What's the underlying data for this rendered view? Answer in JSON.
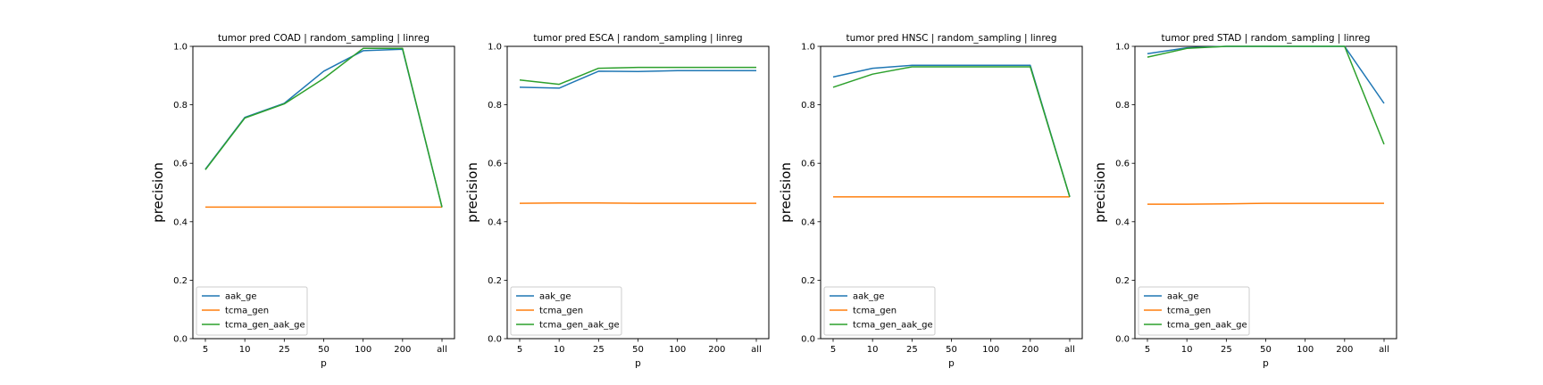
{
  "chart_data": [
    {
      "type": "line",
      "title": "tumor pred COAD | random_sampling | linreg",
      "xlabel": "p",
      "ylabel": "precision",
      "categories": [
        "5",
        "10",
        "25",
        "50",
        "100",
        "200",
        "all"
      ],
      "ylim": [
        0.0,
        1.0
      ],
      "yticks": [
        "0.0",
        "0.2",
        "0.4",
        "0.6",
        "0.8",
        "1.0"
      ],
      "legend_position": "lower-left",
      "grid": false,
      "series": [
        {
          "name": "aak_ge",
          "color": "#1f77b4",
          "values": [
            0.58,
            0.757,
            0.805,
            0.915,
            0.985,
            0.99,
            0.45
          ]
        },
        {
          "name": "tcma_gen",
          "color": "#ff7f0e",
          "values": [
            0.45,
            0.45,
            0.45,
            0.45,
            0.45,
            0.45,
            0.45
          ]
        },
        {
          "name": "tcma_gen_aak_ge",
          "color": "#2ca02c",
          "values": [
            0.578,
            0.755,
            0.803,
            0.89,
            0.993,
            0.993,
            0.45
          ]
        }
      ]
    },
    {
      "type": "line",
      "title": "tumor pred ESCA | random_sampling | linreg",
      "xlabel": "p",
      "ylabel": "precision",
      "categories": [
        "5",
        "10",
        "25",
        "50",
        "100",
        "200",
        "all"
      ],
      "ylim": [
        0.0,
        1.0
      ],
      "yticks": [
        "0.0",
        "0.2",
        "0.4",
        "0.6",
        "0.8",
        "1.0"
      ],
      "legend_position": "lower-left",
      "grid": false,
      "series": [
        {
          "name": "aak_ge",
          "color": "#1f77b4",
          "values": [
            0.86,
            0.857,
            0.915,
            0.914,
            0.917,
            0.917,
            0.917
          ]
        },
        {
          "name": "tcma_gen",
          "color": "#ff7f0e",
          "values": [
            0.463,
            0.464,
            0.464,
            0.463,
            0.463,
            0.463,
            0.463
          ]
        },
        {
          "name": "tcma_gen_aak_ge",
          "color": "#2ca02c",
          "values": [
            0.885,
            0.87,
            0.925,
            0.928,
            0.928,
            0.928,
            0.928
          ]
        }
      ]
    },
    {
      "type": "line",
      "title": "tumor pred HNSC | random_sampling | linreg",
      "xlabel": "p",
      "ylabel": "precision",
      "categories": [
        "5",
        "10",
        "25",
        "50",
        "100",
        "200",
        "all"
      ],
      "ylim": [
        0.0,
        1.0
      ],
      "yticks": [
        "0.0",
        "0.2",
        "0.4",
        "0.6",
        "0.8",
        "1.0"
      ],
      "legend_position": "lower-left",
      "grid": false,
      "series": [
        {
          "name": "aak_ge",
          "color": "#1f77b4",
          "values": [
            0.895,
            0.925,
            0.935,
            0.935,
            0.935,
            0.935,
            0.485
          ]
        },
        {
          "name": "tcma_gen",
          "color": "#ff7f0e",
          "values": [
            0.485,
            0.485,
            0.485,
            0.485,
            0.485,
            0.485,
            0.485
          ]
        },
        {
          "name": "tcma_gen_aak_ge",
          "color": "#2ca02c",
          "values": [
            0.86,
            0.905,
            0.93,
            0.93,
            0.93,
            0.93,
            0.485
          ]
        }
      ]
    },
    {
      "type": "line",
      "title": "tumor pred STAD | random_sampling | linreg",
      "xlabel": "p",
      "ylabel": "precision",
      "categories": [
        "5",
        "10",
        "25",
        "50",
        "100",
        "200",
        "all"
      ],
      "ylim": [
        0.0,
        1.0
      ],
      "yticks": [
        "0.0",
        "0.2",
        "0.4",
        "0.6",
        "0.8",
        "1.0"
      ],
      "legend_position": "lower-left",
      "grid": false,
      "series": [
        {
          "name": "aak_ge",
          "color": "#1f77b4",
          "values": [
            0.975,
            0.995,
            1.0,
            1.0,
            1.0,
            1.0,
            0.805
          ]
        },
        {
          "name": "tcma_gen",
          "color": "#ff7f0e",
          "values": [
            0.46,
            0.46,
            0.461,
            0.463,
            0.463,
            0.463,
            0.463
          ]
        },
        {
          "name": "tcma_gen_aak_ge",
          "color": "#2ca02c",
          "values": [
            0.963,
            0.993,
            1.0,
            1.0,
            1.0,
            1.0,
            0.665
          ]
        }
      ]
    }
  ]
}
